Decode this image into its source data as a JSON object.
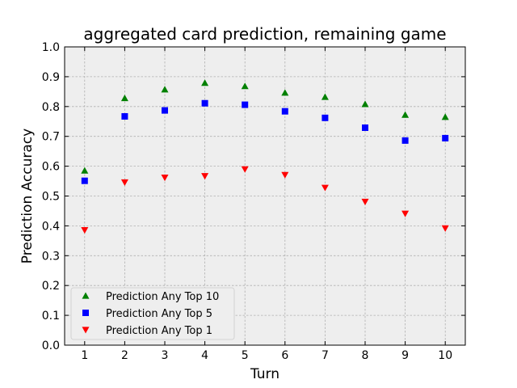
{
  "chart_data": {
    "type": "scatter",
    "title": "aggregated card prediction, remaining game",
    "xlabel": "Turn",
    "ylabel": "Prediction Accuracy",
    "xlim": [
      0.5,
      10.5
    ],
    "ylim": [
      0.0,
      1.0
    ],
    "x": [
      1,
      2,
      3,
      4,
      5,
      6,
      7,
      8,
      9,
      10
    ],
    "xticks": [
      "1",
      "2",
      "3",
      "4",
      "5",
      "6",
      "7",
      "8",
      "9",
      "10"
    ],
    "yticks": [
      "0.0",
      "0.1",
      "0.2",
      "0.3",
      "0.4",
      "0.5",
      "0.6",
      "0.7",
      "0.8",
      "0.9",
      "1.0"
    ],
    "grid": true,
    "legend_position": "bottom-left",
    "series": [
      {
        "name": "Prediction Any Top 10",
        "marker": "triangle-up",
        "color": "#008000",
        "values": [
          0.585,
          0.828,
          0.857,
          0.879,
          0.868,
          0.846,
          0.832,
          0.808,
          0.772,
          0.765
        ]
      },
      {
        "name": "Prediction Any Top 5",
        "marker": "square",
        "color": "#0000ff",
        "values": [
          0.551,
          0.767,
          0.787,
          0.811,
          0.806,
          0.784,
          0.762,
          0.729,
          0.686,
          0.694
        ]
      },
      {
        "name": "Prediction Any Top 1",
        "marker": "triangle-down",
        "color": "#ff0000",
        "values": [
          0.386,
          0.546,
          0.562,
          0.567,
          0.59,
          0.571,
          0.528,
          0.481,
          0.441,
          0.392
        ]
      }
    ]
  }
}
